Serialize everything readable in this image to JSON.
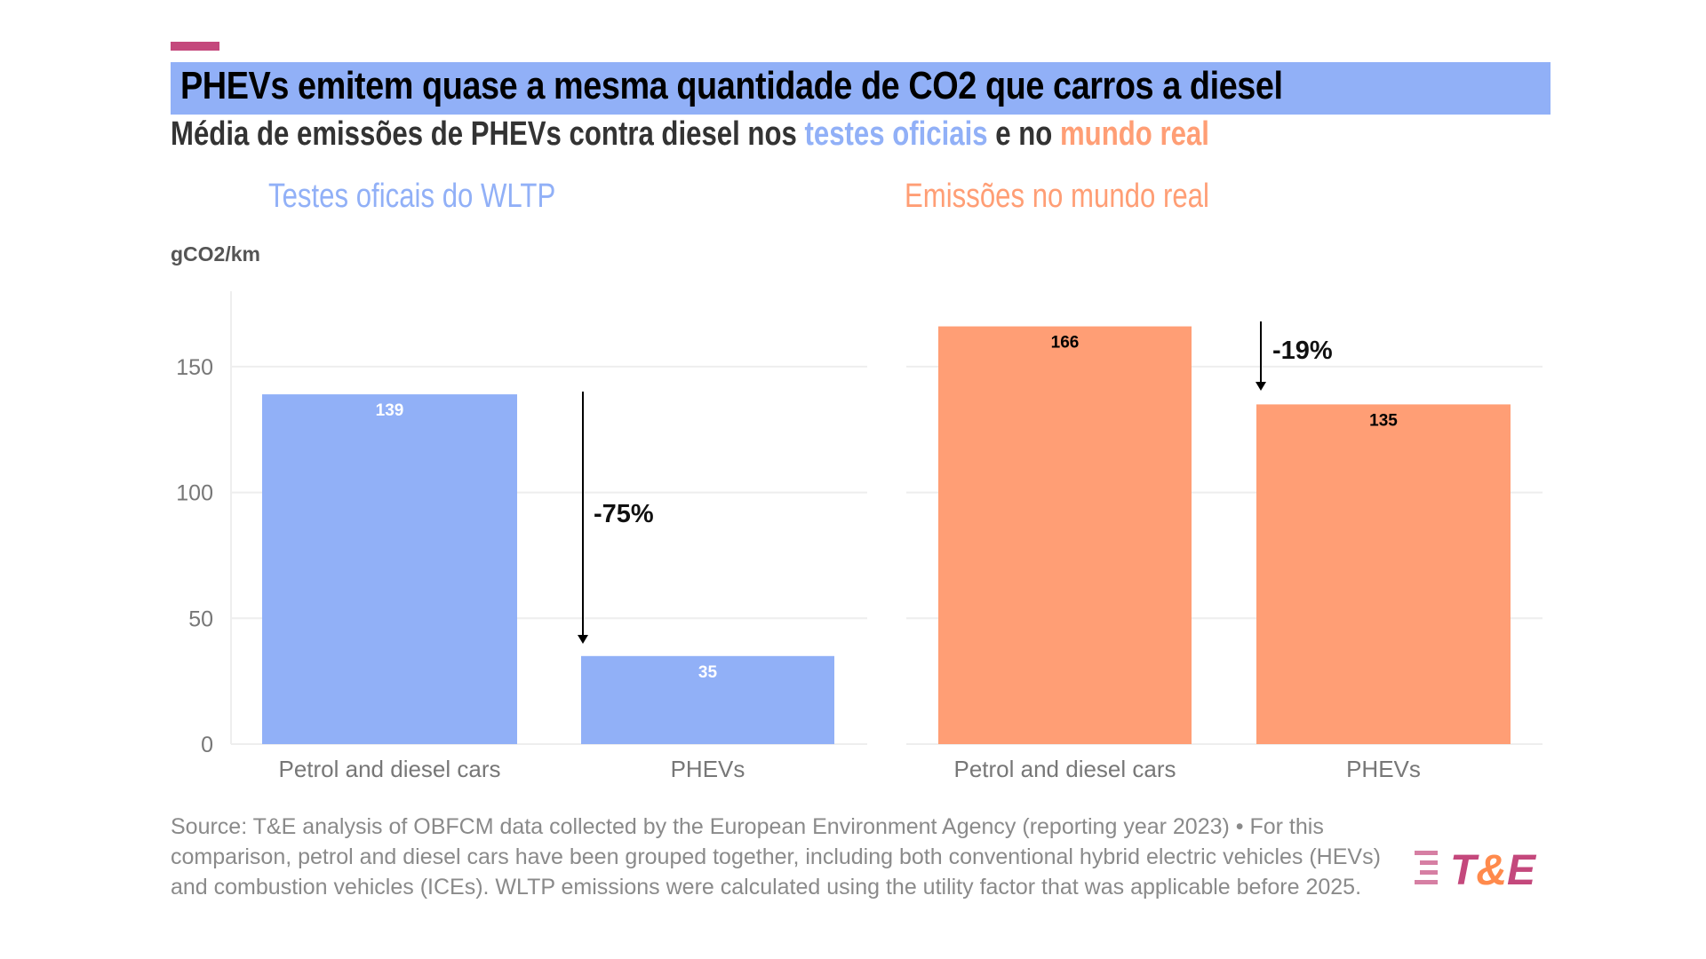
{
  "header": {
    "title": "PHEVs emitem quase a mesma quantidade de CO2 que carros a diesel",
    "subtitle_parts": [
      "Média de emissões de PHEVs contra diesel nos ",
      "testes oficiais",
      " e no ",
      "mundo real"
    ]
  },
  "colors": {
    "accent": "#c4487c",
    "title_band": "#91b0f7",
    "wltp": "#91b0f7",
    "real": "#ff9e75",
    "logo_pink": "#c4487c",
    "logo_orange": "#ff8a4c"
  },
  "chart_data": [
    {
      "type": "bar",
      "title": "Testes oficais do WLTP",
      "ylabel": "gCO2/km",
      "categories": [
        "Petrol and diesel cars",
        "PHEVs"
      ],
      "values": [
        139,
        35
      ],
      "ylim": [
        0,
        180
      ],
      "yticks": [
        0,
        50,
        100,
        150
      ],
      "grid": true,
      "annotation": "-75%",
      "color": "#91b0f7",
      "label_color": "#ffffff"
    },
    {
      "type": "bar",
      "title": "Emissões no mundo real",
      "categories": [
        "Petrol and diesel cars",
        "PHEVs"
      ],
      "values": [
        166,
        135
      ],
      "ylim": [
        0,
        180
      ],
      "grid": true,
      "annotation": "-19%",
      "color": "#ff9e75",
      "label_color": "#000000"
    }
  ],
  "source": "Source: T&E analysis of OBFCM data collected by the European Environment Agency (reporting year 2023) • For this comparison, petrol and diesel cars have been grouped together, including both conventional hybrid electric vehicles (HEVs) and combustion vehicles (ICEs). WLTP emissions were calculated using the utility factor that was applicable before 2025.",
  "logo": {
    "text": "T&E",
    "icon": "te-stripes-icon"
  }
}
